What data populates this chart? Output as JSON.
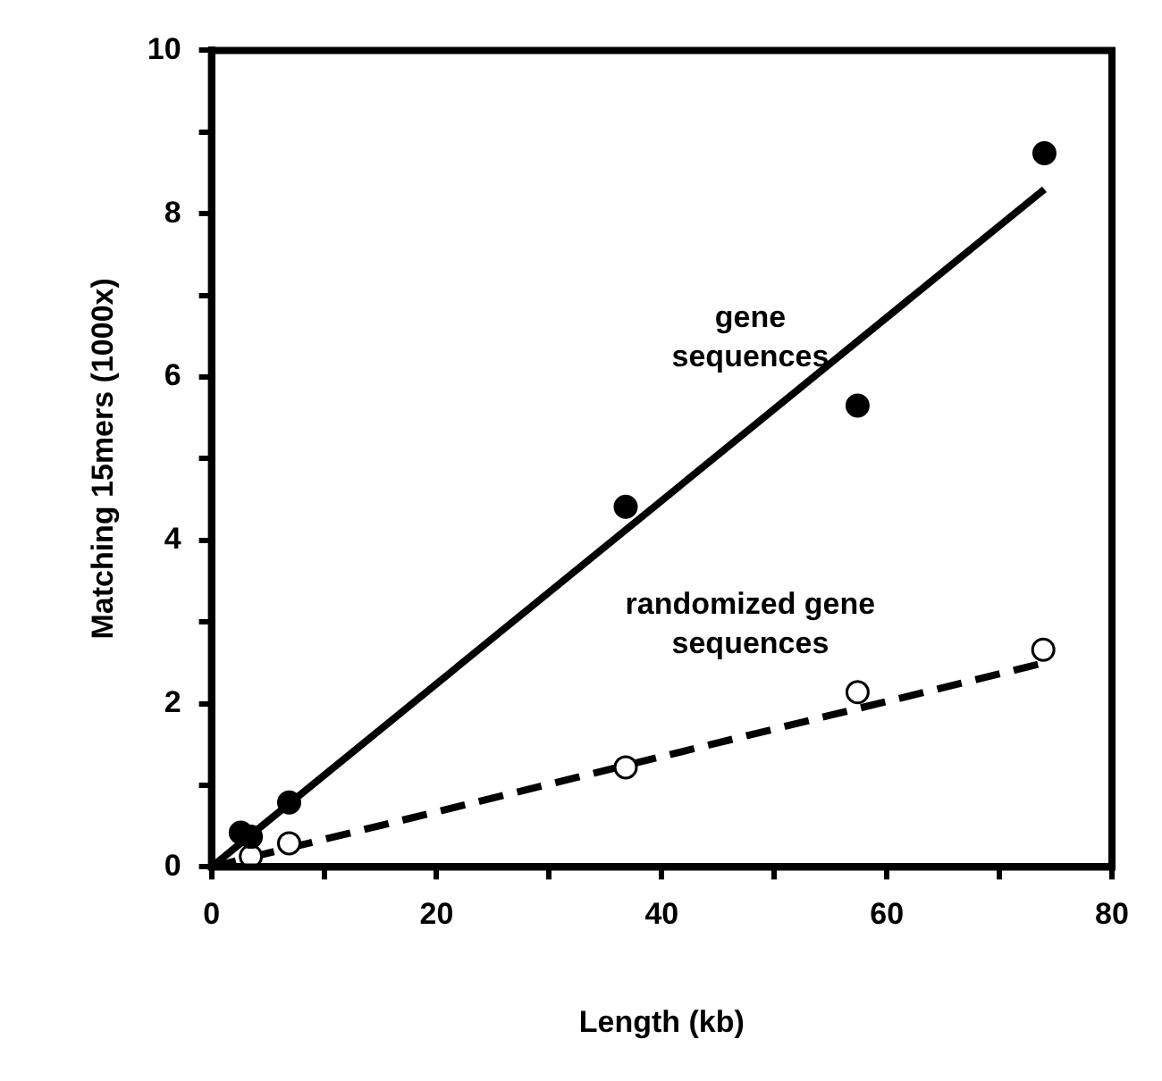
{
  "chart_data": {
    "type": "scatter",
    "xlabel": "Length (kb)",
    "ylabel": "Matching 15mers (1000x)",
    "marker": "circle",
    "grid": false,
    "legend": false,
    "xlim": [
      0,
      80
    ],
    "xticks": [
      0,
      {
        "value": 10,
        "label": null
      },
      20,
      {
        "value": 30,
        "label": null
      },
      40,
      {
        "value": 50,
        "label": null
      },
      60,
      {
        "value": 70,
        "label": null
      },
      80
    ],
    "ylim": [
      0,
      10
    ],
    "yticks": [
      0,
      {
        "value": 1,
        "label": null
      },
      2,
      {
        "value": 3,
        "label": null
      },
      4,
      {
        "value": 5,
        "label": null
      },
      6,
      {
        "value": 7,
        "label": null
      },
      8,
      {
        "value": 9,
        "label": null
      },
      10
    ],
    "series": [
      {
        "name": "gene sequences",
        "color": "#000000",
        "x": [
          2.6,
          3.5,
          6.9,
          36.8,
          57.4,
          74
        ],
        "values": [
          0.42,
          0.37,
          0.79,
          4.41,
          5.65,
          8.74
        ]
      },
      {
        "name": "randomized gene sequences",
        "color": "#ffffff",
        "x": [
          3.5,
          6.9,
          36.8,
          57.4,
          73.9
        ],
        "values": [
          0.13,
          0.29,
          1.22,
          2.14,
          2.66
        ]
      },
      {
        "type": "line",
        "marker": "none",
        "line_style": "solid",
        "color": "#000000",
        "x": [
          0,
          74
        ],
        "values": [
          0,
          8.3
        ]
      },
      {
        "type": "line",
        "marker": "none",
        "line_style": "dashed",
        "color": "#000000",
        "x": [
          0,
          74
        ],
        "values": [
          0,
          2.5
        ]
      }
    ]
  }
}
